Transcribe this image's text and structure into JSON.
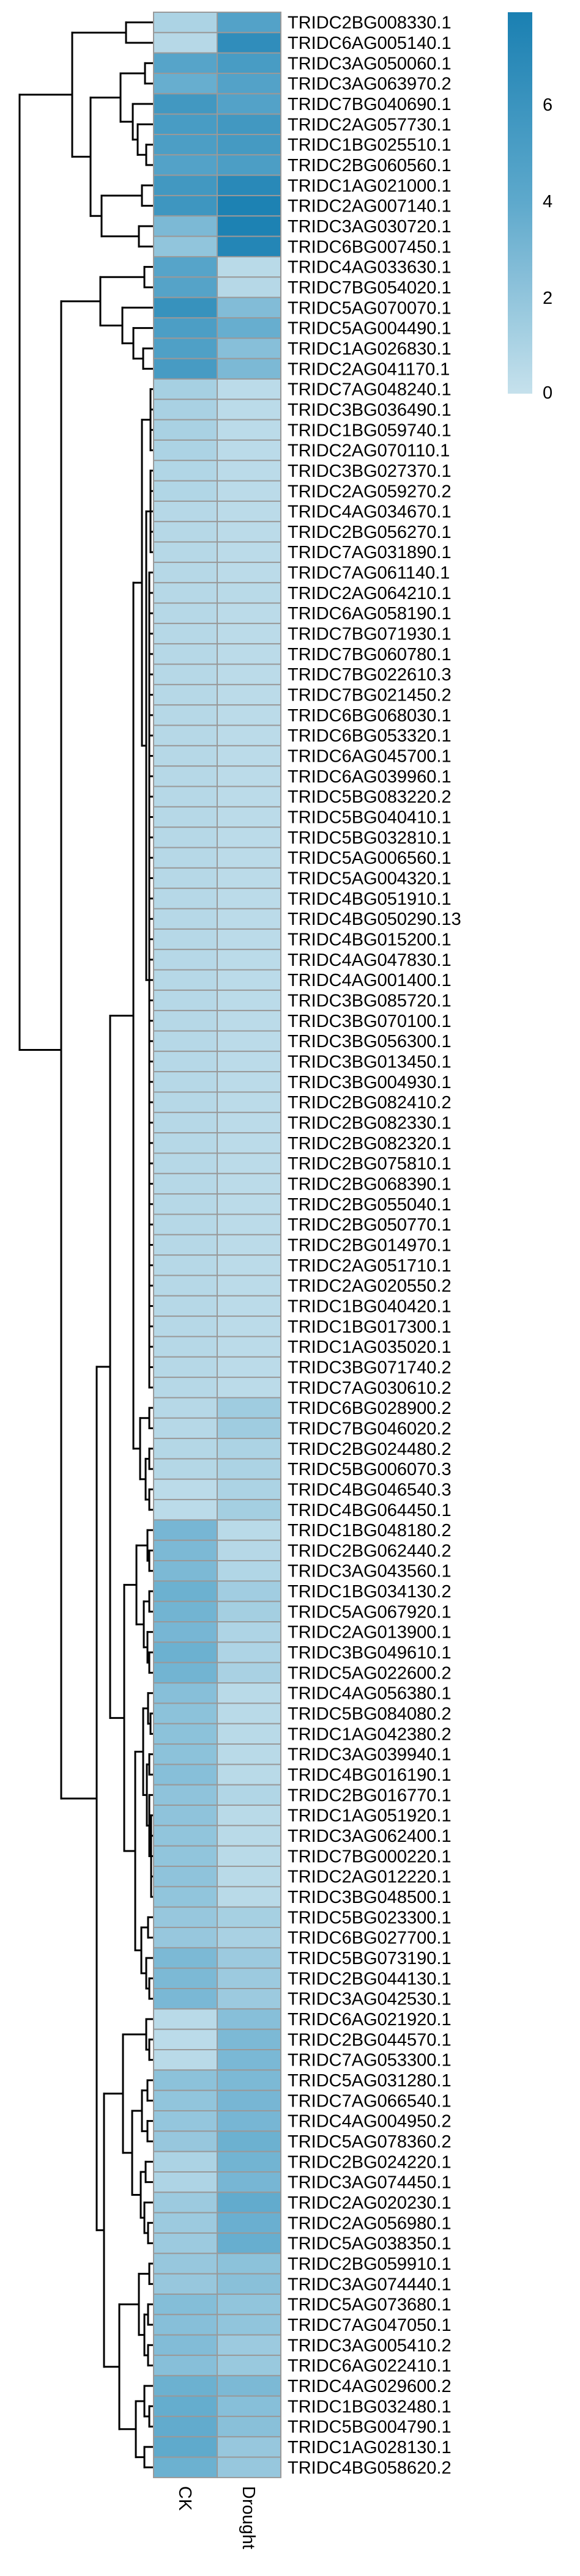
{
  "chart_data": {
    "type": "heatmap",
    "title": "",
    "columns": [
      "CK",
      "Drought"
    ],
    "rows": [
      "TRIDC2BG008330.1",
      "TRIDC6AG005140.1",
      "TRIDC3AG050060.1",
      "TRIDC3AG063970.2",
      "TRIDC7BG040690.1",
      "TRIDC2AG057730.1",
      "TRIDC1BG025510.1",
      "TRIDC2BG060560.1",
      "TRIDC1AG021000.1",
      "TRIDC2AG007140.1",
      "TRIDC3AG030720.1",
      "TRIDC6BG007450.1",
      "TRIDC4AG033630.1",
      "TRIDC7BG054020.1",
      "TRIDC5AG070070.1",
      "TRIDC5AG004490.1",
      "TRIDC1AG026830.1",
      "TRIDC2AG041170.1",
      "TRIDC7AG048240.1",
      "TRIDC3BG036490.1",
      "TRIDC1BG059740.1",
      "TRIDC2AG070110.1",
      "TRIDC3BG027370.1",
      "TRIDC2AG059270.2",
      "TRIDC4AG034670.1",
      "TRIDC2BG056270.1",
      "TRIDC7AG031890.1",
      "TRIDC7AG061140.1",
      "TRIDC2AG064210.1",
      "TRIDC6AG058190.1",
      "TRIDC7BG071930.1",
      "TRIDC7BG060780.1",
      "TRIDC7BG022610.3",
      "TRIDC7BG021450.2",
      "TRIDC6BG068030.1",
      "TRIDC6BG053320.1",
      "TRIDC6AG045700.1",
      "TRIDC6AG039960.1",
      "TRIDC5BG083220.2",
      "TRIDC5BG040410.1",
      "TRIDC5BG032810.1",
      "TRIDC5AG006560.1",
      "TRIDC5AG004320.1",
      "TRIDC4BG051910.1",
      "TRIDC4BG050290.13",
      "TRIDC4BG015200.1",
      "TRIDC4AG047830.1",
      "TRIDC4AG001400.1",
      "TRIDC3BG085720.1",
      "TRIDC3BG070100.1",
      "TRIDC3BG056300.1",
      "TRIDC3BG013450.1",
      "TRIDC3BG004930.1",
      "TRIDC2BG082410.2",
      "TRIDC2BG082330.1",
      "TRIDC2BG082320.1",
      "TRIDC2BG075810.1",
      "TRIDC2BG068390.1",
      "TRIDC2BG055040.1",
      "TRIDC2BG050770.1",
      "TRIDC2BG014970.1",
      "TRIDC2AG051710.1",
      "TRIDC2AG020550.2",
      "TRIDC1BG040420.1",
      "TRIDC1BG017300.1",
      "TRIDC1AG035020.1",
      "TRIDC3BG071740.2",
      "TRIDC7AG030610.2",
      "TRIDC6BG028900.2",
      "TRIDC7BG046020.2",
      "TRIDC2BG024480.2",
      "TRIDC5BG006070.3",
      "TRIDC4BG046540.3",
      "TRIDC4BG064450.1",
      "TRIDC1BG048180.2",
      "TRIDC2BG062440.2",
      "TRIDC3AG043560.1",
      "TRIDC1BG034130.2",
      "TRIDC5AG067920.1",
      "TRIDC2AG013900.1",
      "TRIDC3BG049610.1",
      "TRIDC5AG022600.2",
      "TRIDC4AG056380.1",
      "TRIDC5BG084080.2",
      "TRIDC1AG042380.2",
      "TRIDC3AG039940.1",
      "TRIDC4BG016190.1",
      "TRIDC2BG016770.1",
      "TRIDC1AG051920.1",
      "TRIDC3AG062400.1",
      "TRIDC7BG000220.1",
      "TRIDC2AG012220.1",
      "TRIDC3BG048500.1",
      "TRIDC5BG023300.1",
      "TRIDC6BG027700.1",
      "TRIDC5BG073190.1",
      "TRIDC2BG044130.1",
      "TRIDC3AG042530.1",
      "TRIDC6AG021920.1",
      "TRIDC2BG044570.1",
      "TRIDC7AG053300.1",
      "TRIDC5AG031280.1",
      "TRIDC7AG066540.1",
      "TRIDC4AG004950.2",
      "TRIDC5AG078360.2",
      "TRIDC2BG024220.1",
      "TRIDC3AG074450.1",
      "TRIDC2AG020230.1",
      "TRIDC2AG056980.1",
      "TRIDC5AG038350.1",
      "TRIDC2BG059910.1",
      "TRIDC3AG074440.1",
      "TRIDC5AG073680.1",
      "TRIDC7AG047050.1",
      "TRIDC3AG005410.2",
      "TRIDC6AG022410.1",
      "TRIDC4AG029600.2",
      "TRIDC1BG032480.1",
      "TRIDC5BG004790.1",
      "TRIDC1AG028130.1",
      "TRIDC4BG058620.2"
    ],
    "values": {
      "CK": [
        1.0,
        0.6,
        4.4,
        3.6,
        5.6,
        5.2,
        5.0,
        4.6,
        5.6,
        5.8,
        2.8,
        2.0,
        4.4,
        4.5,
        6.2,
        5.0,
        4.8,
        5.3,
        1.2,
        1.1,
        1.1,
        1.0,
        0.8,
        0.8,
        0.6,
        0.6,
        0.6,
        0.6,
        0.6,
        0.6,
        0.6,
        0.6,
        0.6,
        0.6,
        0.6,
        0.6,
        0.6,
        0.6,
        0.6,
        0.6,
        0.6,
        0.6,
        0.6,
        0.6,
        0.6,
        0.6,
        0.6,
        0.6,
        0.6,
        0.6,
        0.6,
        0.6,
        0.6,
        0.6,
        0.6,
        0.6,
        0.6,
        0.6,
        0.6,
        0.6,
        0.6,
        0.6,
        0.6,
        0.6,
        0.6,
        0.6,
        0.6,
        0.6,
        0.6,
        0.6,
        0.7,
        0.7,
        0.4,
        0.4,
        3.0,
        2.8,
        2.8,
        3.4,
        3.2,
        3.0,
        3.4,
        3.2,
        2.4,
        2.2,
        2.2,
        2.2,
        2.4,
        2.1,
        2.1,
        2.0,
        2.0,
        2.1,
        2.0,
        1.8,
        1.8,
        2.8,
        2.8,
        2.9,
        0.5,
        0.4,
        0.5,
        2.2,
        2.0,
        1.9,
        1.8,
        1.0,
        0.9,
        1.6,
        1.6,
        1.6,
        1.8,
        1.8,
        2.5,
        2.4,
        2.6,
        2.4,
        3.4,
        3.7,
        3.8,
        3.9,
        3.4
      ],
      "Drought": [
        4.6,
        6.6,
        5.2,
        4.6,
        4.6,
        5.6,
        5.4,
        5.0,
        7.0,
        7.7,
        7.7,
        7.3,
        0.5,
        0.6,
        2.6,
        3.6,
        2.4,
        2.8,
        0.4,
        0.4,
        0.4,
        0.4,
        0.4,
        0.4,
        0.4,
        0.4,
        0.4,
        0.4,
        0.5,
        0.4,
        0.4,
        0.4,
        0.4,
        0.4,
        0.4,
        0.4,
        0.4,
        0.4,
        0.4,
        0.4,
        0.4,
        0.4,
        0.4,
        0.4,
        0.4,
        0.4,
        0.4,
        0.4,
        0.4,
        0.4,
        0.4,
        0.4,
        0.4,
        0.4,
        0.4,
        0.4,
        0.4,
        0.4,
        0.4,
        0.4,
        0.4,
        0.4,
        0.4,
        0.4,
        0.4,
        0.4,
        0.4,
        0.4,
        1.5,
        1.5,
        1.0,
        1.0,
        1.0,
        1.3,
        0.5,
        0.6,
        0.8,
        1.4,
        1.3,
        0.9,
        0.9,
        1.1,
        0.5,
        0.5,
        0.5,
        0.5,
        0.5,
        0.8,
        0.5,
        0.5,
        0.5,
        0.5,
        0.5,
        1.2,
        1.1,
        1.6,
        1.6,
        1.6,
        2.4,
        2.8,
        2.9,
        2.8,
        3.0,
        3.0,
        3.4,
        3.2,
        3.0,
        3.8,
        3.5,
        3.6,
        2.2,
        2.3,
        2.0,
        2.0,
        1.6,
        1.7,
        2.8,
        2.4,
        2.3,
        1.8,
        1.8
      ]
    },
    "color_scale": {
      "range": [
        0,
        7.9
      ],
      "ticks": [
        0,
        2,
        4,
        6
      ],
      "colors": [
        "#c6e1ec",
        "#5ea9cc",
        "#1a80b2"
      ]
    },
    "cell_border_color": "#999999",
    "legend_placement": "top-right",
    "row_dendrogram": [
      10.9,
      [
        6.6,
        [
          2.2,
          1,
          2
        ],
        [
          5.1,
          [
            2.65,
            [
              0.65,
              3,
              4
            ],
            [
              1.65,
              5,
              [
                1.25,
                6,
                [
                  0.55,
                  7,
                  8
                ]
              ]
            ]
          ],
          [
            4.2,
            [
              0.9,
              9,
              10
            ],
            [
              1.15,
              11,
              12
            ]
          ]
        ]
      ],
      [
        7.5,
        [
          4.3,
          [
            0.7,
            13,
            14
          ],
          [
            2.5,
            15,
            [
              1.6,
              16,
              [
                0.8,
                17,
                18
              ]
            ]
          ]
        ],
        [
          4.6,
          [
            3.5,
            [
              1.6,
              [
                0.9,
                {
                  "h": 0.2,
                  "range": [
                    19,
                    22
                  ]
                },
                [
                  0.55,
                  {
                    "h": 0.2,
                    "range": [
                      23,
                      27
                    ]
                  },
                  {
                    "h": 0.3,
                    "range": [
                      28,
                      68
                    ]
                  }
                ]
              ],
              [
                1.05,
                [
                  0.3,
                  69,
                  70
                ],
                [
                  0.6,
                  [
                    0.3,
                    71,
                    72
                  ],
                  [
                    0.3,
                    73,
                    74
                  ]
                ]
              ]
            ],
            [
              2.35,
              [
                1.35,
                [
                  0.45,
                  75,
                  [
                    0.3,
                    76,
                    77
                  ]
                ],
                [
                  0.75,
                  [
                    0.3,
                    78,
                    79
                  ],
                  [
                    0.45,
                    80,
                    [
                      0.3,
                      81,
                      82
                    ]
                  ]
                ]
              ],
              [
                1.45,
                [
                  0.8,
                  [
                    0.4,
                    83,
                    [
                      0.2,
                      84,
                      85
                    ]
                  ],
                  [
                    0.5,
                    [
                      0.3,
                      86,
                      87
                    ],
                    [
                      0.3,
                      88,
                      {
                        "h": 0.15,
                        "range": [
                          89,
                          93
                        ]
                      }
                    ]
                  ]
                ],
                [
                  0.95,
                  [
                    0.4,
                    94,
                    95
                  ],
                  [
                    0.55,
                    96,
                    [
                      0.3,
                      97,
                      98
                    ]
                  ]
                ]
              ]
            ]
          ],
          [
            4.0,
            [
              2.45,
              [
                0.55,
                99,
                [
                  0.3,
                  100,
                  101
                ]
              ],
              [
                1.7,
                [
                  0.9,
                  [
                    0.45,
                    102,
                    103
                  ],
                  [
                    0.45,
                    104,
                    105
                  ]
                ],
                [
                  1.0,
                  [
                    0.6,
                    106,
                    107
                  ],
                  [
                    0.7,
                    108,
                    [
                      0.4,
                      109,
                      110
                    ]
                  ]
                ]
              ]
            ],
            [
              2.75,
              [
                1.15,
                [
                  0.3,
                  111,
                  112
                ],
                [
                  0.7,
                  [
                    0.4,
                    113,
                    114
                  ],
                  [
                    0.4,
                    115,
                    116
                  ]
                ]
              ],
              [
                1.4,
                [
                  0.7,
                  117,
                  [
                    0.3,
                    118,
                    119
                  ]
                ],
                [
                  0.7,
                  120,
                  121
                ]
              ]
            ]
          ]
        ]
      ]
    ]
  }
}
